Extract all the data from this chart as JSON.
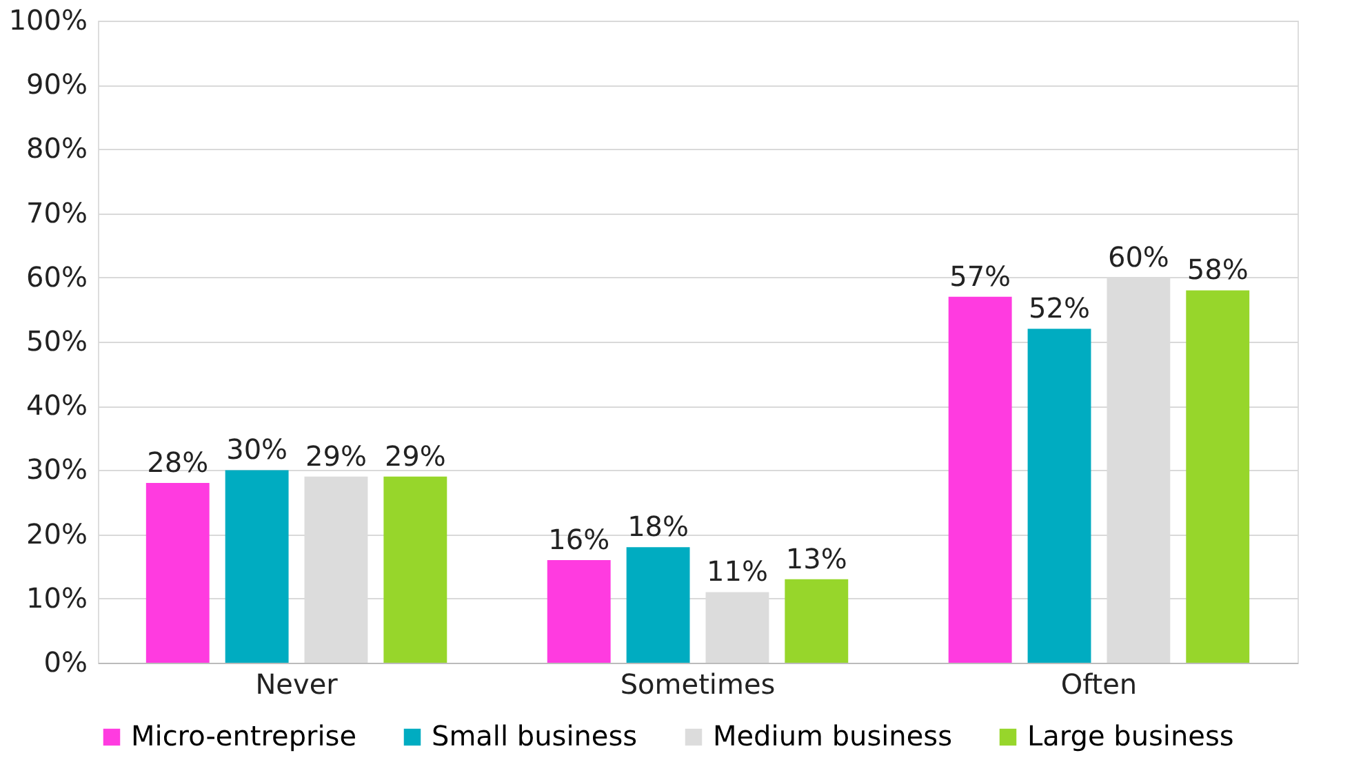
{
  "chart_data": {
    "type": "bar",
    "categories": [
      "Never",
      "Sometimes",
      "Often"
    ],
    "series": [
      {
        "name": "Micro-entreprise",
        "color": "#ff3be0",
        "values": [
          28,
          16,
          57
        ],
        "value_labels": [
          "28%",
          "16%",
          "57%"
        ]
      },
      {
        "name": "Small business",
        "color": "#00acc1",
        "values": [
          30,
          18,
          52
        ],
        "value_labels": [
          "30%",
          "18%",
          "52%"
        ]
      },
      {
        "name": "Medium business",
        "color": "#dcdcdc",
        "values": [
          29,
          11,
          60
        ],
        "value_labels": [
          "29%",
          "11%",
          "60%"
        ]
      },
      {
        "name": "Large business",
        "color": "#97d62b",
        "values": [
          29,
          13,
          58
        ],
        "value_labels": [
          "29%",
          "13%",
          "58%"
        ]
      }
    ],
    "ylim": [
      0,
      100
    ],
    "yticks": [
      {
        "value": 0,
        "label": "0%"
      },
      {
        "value": 10,
        "label": "10%"
      },
      {
        "value": 20,
        "label": "20%"
      },
      {
        "value": 30,
        "label": "30%"
      },
      {
        "value": 40,
        "label": "40%"
      },
      {
        "value": 50,
        "label": "50%"
      },
      {
        "value": 60,
        "label": "60%"
      },
      {
        "value": 70,
        "label": "70%"
      },
      {
        "value": 80,
        "label": "80%"
      },
      {
        "value": 90,
        "label": "90%"
      },
      {
        "value": 100,
        "label": "100%"
      }
    ],
    "grid": "y",
    "legend": "bottom"
  }
}
